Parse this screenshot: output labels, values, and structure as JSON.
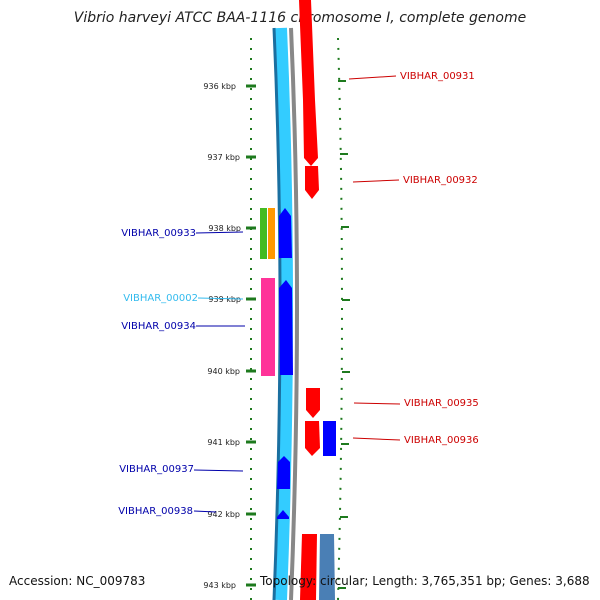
{
  "title": "Vibrio harveyi ATCC BAA-1116 chromosome I, complete genome",
  "accession": "Accession: NC_009783",
  "topology": "Topology: circular; Length: 3,765,351 bp; Genes: 3,688",
  "ticks": [
    "936 kbp",
    "937 kbp",
    "938 kbp",
    "939 kbp",
    "940 kbp",
    "941 kbp",
    "942 kbp",
    "943 kbp"
  ],
  "genes_left": [
    {
      "name": "VIBHAR_00933",
      "color": "#0000aa"
    },
    {
      "name": "VIBHAR_00002",
      "color": "#33bbee"
    },
    {
      "name": "VIBHAR_00934",
      "color": "#0000aa"
    },
    {
      "name": "VIBHAR_00937",
      "color": "#0000aa"
    },
    {
      "name": "VIBHAR_00938",
      "color": "#0000aa"
    }
  ],
  "genes_right": [
    {
      "name": "VIBHAR_00931",
      "color": "#cc0000"
    },
    {
      "name": "VIBHAR_00932",
      "color": "#cc0000"
    },
    {
      "name": "VIBHAR_00935",
      "color": "#cc0000"
    },
    {
      "name": "VIBHAR_00936",
      "color": "#cc0000"
    }
  ],
  "colors": {
    "forward": "#ff0000",
    "reverse": "#0000ff",
    "backbone": "#33ccff",
    "backbone_dark": "#1a6fa0",
    "gc": "#888888",
    "ticks": "#1e7a1e",
    "trna_green": "#44bb22",
    "trna_orange": "#ff9900",
    "pink": "#ff3399",
    "steel": "#4a7fb5"
  }
}
